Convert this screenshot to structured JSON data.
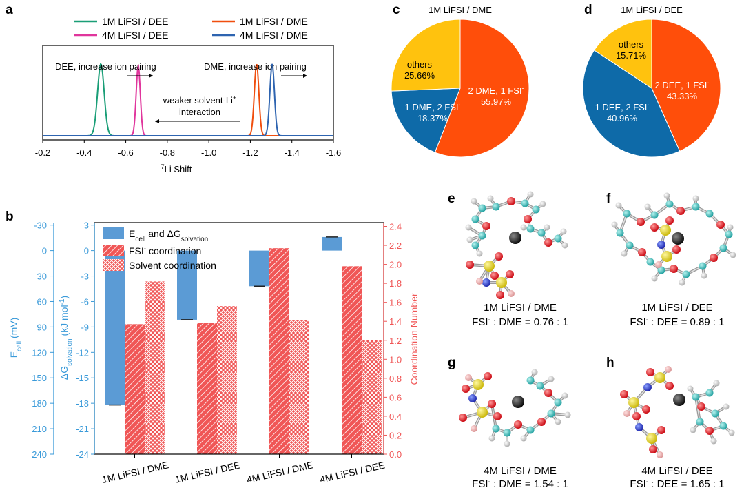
{
  "panel_labels": {
    "a": "a",
    "b": "b",
    "c": "c",
    "d": "d",
    "e": "e",
    "f": "f",
    "g": "g",
    "h": "h"
  },
  "colors": {
    "lifsi_1m_dee": "#1a9e77",
    "lifsi_4m_dee": "#e0359c",
    "lifsi_1m_dme": "#f04e0e",
    "lifsi_4m_dme": "#2e64b0",
    "bar_blue": "#5b9bd5",
    "bar_red": "#f05656",
    "pie_red": "#ff4e0a",
    "pie_blue": "#0e6aa8",
    "pie_yellow": "#ffc20e",
    "axis_blue": "#3a9ad9",
    "axis_red": "#f05656"
  },
  "chart_data": [
    {
      "type": "line",
      "panel": "a",
      "xlabel": "7Li Shift",
      "xlabel_sup": "7",
      "xlabel_main": "Li Shift",
      "xlim": [
        -0.2,
        -1.6
      ],
      "x_reversed": true,
      "xticks": [
        "-0.2",
        "-0.4",
        "-0.6",
        "-0.8",
        "-1.0",
        "-1.2",
        "-1.4",
        "-1.6"
      ],
      "xtick_values": [
        -0.2,
        -0.4,
        -0.6,
        -0.8,
        -1.0,
        -1.2,
        -1.4,
        -1.6
      ],
      "legend": [
        "1M LiFSI / DEE",
        "1M LiFSI / DME",
        "4M LiFSI / DEE",
        "4M LiFSI / DME"
      ],
      "series": [
        {
          "name": "1M LiFSI / DEE",
          "peak_ppm": -0.48,
          "width": 0.016,
          "height": 0.82
        },
        {
          "name": "4M LiFSI / DEE",
          "peak_ppm": -0.66,
          "width": 0.01,
          "height": 0.8
        },
        {
          "name": "1M LiFSI / DME",
          "peak_ppm": -1.23,
          "width": 0.011,
          "height": 0.82
        },
        {
          "name": "4M LiFSI / DME",
          "peak_ppm": -1.305,
          "width": 0.011,
          "height": 0.82
        }
      ],
      "annotations": {
        "dee": "DEE, increase ion pairing",
        "dme": "DME, increase ion pairing",
        "weaker_line1": "weaker solvent-Li+",
        "weaker_line1_main": "weaker solvent-Li",
        "weaker_line1_sup": "+",
        "weaker_line2": "interaction"
      }
    },
    {
      "type": "bar",
      "panel": "b",
      "categories": [
        "1M LiFSI / DME",
        "1M LiFSI / DEE",
        "4M LiFSI / DME",
        "4M LiFSI / DEE"
      ],
      "series": [
        {
          "name": "Ecell and ΔGsolvation",
          "axis": "left_dG",
          "values": [
            -18.2,
            -8.15,
            -4.2,
            1.6
          ]
        },
        {
          "name": "FSI- coordination",
          "axis": "right",
          "values": [
            1.37,
            1.38,
            2.17,
            1.98
          ]
        },
        {
          "name": "Solvent coordination",
          "axis": "right",
          "values": [
            1.82,
            1.56,
            1.41,
            1.2
          ]
        }
      ],
      "legend": {
        "blue_main": "E",
        "blue_sub1": "cell",
        "blue_mid": " and ΔG",
        "blue_sub2": "solvation",
        "red_main": "FSI",
        "red_sup": "-",
        "red_rest": " coordination",
        "hatch": "Solvent coordination"
      },
      "left_outer_axis": {
        "label_main": "E",
        "label_sub": "cell",
        "label_rest": " (mV)",
        "ticks": [
          "-30",
          "0",
          "30",
          "60",
          "90",
          "120",
          "150",
          "180",
          "210",
          "240"
        ],
        "tick_values": [
          -30,
          0,
          30,
          60,
          90,
          120,
          150,
          180,
          210,
          240
        ]
      },
      "left_inner_axis": {
        "label_pre": "ΔG",
        "label_sub": "solvation",
        "label_rest": " (kJ mol",
        "label_sup": "-1",
        "label_end": ")",
        "ylim": [
          -24,
          3.3
        ],
        "ticks": [
          "3",
          "0",
          "-3",
          "-6",
          "-9",
          "-12",
          "-15",
          "-18",
          "-21",
          "-24"
        ],
        "tick_values": [
          3,
          0,
          -3,
          -6,
          -9,
          -12,
          -15,
          -18,
          -21,
          -24
        ]
      },
      "right_axis": {
        "label": "Coordination Number",
        "ylim": [
          0.0,
          2.44
        ],
        "ticks": [
          "0.0",
          "0.2",
          "0.4",
          "0.6",
          "0.8",
          "1.0",
          "1.2",
          "1.4",
          "1.6",
          "1.8",
          "2.0",
          "2.2",
          "2.4"
        ],
        "tick_values": [
          0.0,
          0.2,
          0.4,
          0.6,
          0.8,
          1.0,
          1.2,
          1.4,
          1.6,
          1.8,
          2.0,
          2.2,
          2.4
        ]
      }
    },
    {
      "type": "pie",
      "panel": "c",
      "title": "1M LiFSI / DME",
      "slices": [
        {
          "label": "2 DME, 1 FSI-",
          "label_main": "2 DME, 1 FSI",
          "label_sup": "-",
          "value": 55.97,
          "value_label": "55.97%",
          "color_key": "pie_red"
        },
        {
          "label": "1 DME, 2 FSI-",
          "label_main": "1 DME, 2 FSI",
          "label_sup": "-",
          "value": 18.37,
          "value_label": "18.37%",
          "color_key": "pie_blue"
        },
        {
          "label": "others",
          "label_main": "others",
          "label_sup": "",
          "value": 25.66,
          "value_label": "25.66%",
          "color_key": "pie_yellow"
        }
      ]
    },
    {
      "type": "pie",
      "panel": "d",
      "title": "1M LiFSI / DEE",
      "slices": [
        {
          "label": "2 DEE, 1 FSI-",
          "label_main": "2 DEE, 1 FSI",
          "label_sup": "-",
          "value": 43.33,
          "value_label": "43.33%",
          "color_key": "pie_red"
        },
        {
          "label": "1 DEE, 2 FSI-",
          "label_main": "1 DEE, 2 FSI",
          "label_sup": "-",
          "value": 40.96,
          "value_label": "40.96%",
          "color_key": "pie_blue"
        },
        {
          "label": "others",
          "label_main": "others",
          "label_sup": "",
          "value": 15.71,
          "value_label": "15.71%",
          "color_key": "pie_yellow"
        }
      ]
    }
  ],
  "structures": {
    "e": {
      "title": "1M LiFSI / DME",
      "ratio_pre": "FSI",
      "ratio_sup": "-",
      "ratio_rest": " : DME = 0.76 : 1"
    },
    "f": {
      "title": "1M LiFSI / DEE",
      "ratio_pre": "FSI",
      "ratio_sup": "-",
      "ratio_rest": " : DEE = 0.89 : 1"
    },
    "g": {
      "title": "4M LiFSI / DME",
      "ratio_pre": "FSI",
      "ratio_sup": "-",
      "ratio_rest": " : DME = 1.54 : 1"
    },
    "h": {
      "title": "4M LiFSI / DEE",
      "ratio_pre": "FSI",
      "ratio_sup": "-",
      "ratio_rest": " : DEE = 1.65 : 1"
    }
  }
}
